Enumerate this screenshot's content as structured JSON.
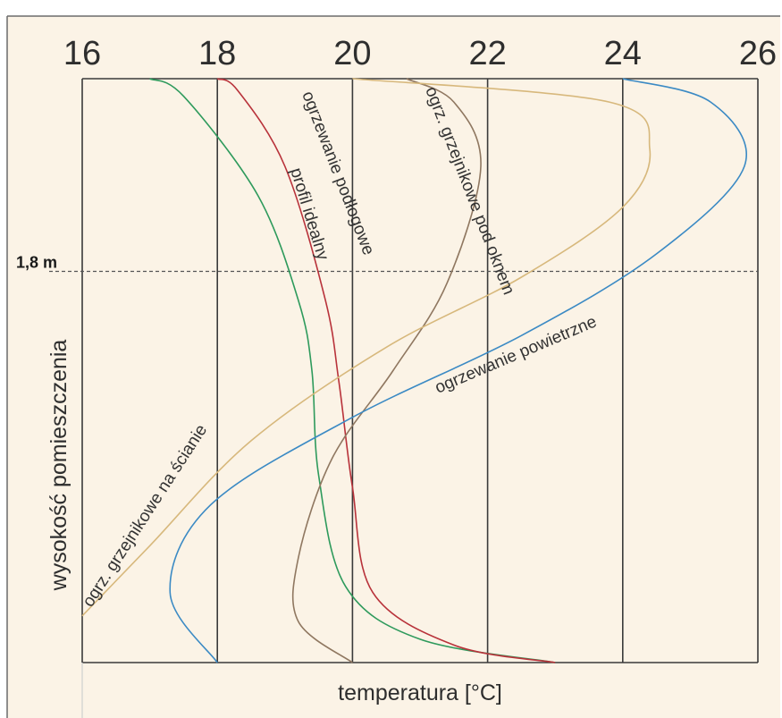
{
  "chart_data": {
    "type": "line",
    "title": "",
    "xlabel": "temperatura [°C]",
    "ylabel": "wysokość pomieszczenia",
    "xlim": [
      16,
      26
    ],
    "x_ticks": [
      16,
      18,
      20,
      22,
      24,
      26
    ],
    "x_tick_labels": [
      "16",
      "18",
      "20",
      "22",
      "24",
      "26"
    ],
    "y_range_fraction": [
      0,
      1
    ],
    "grid": "vertical lines at each x tick",
    "reference_line": {
      "label": "1,8 m",
      "height_fraction": 0.67,
      "style": "dashed"
    },
    "background": "#fbf3e6",
    "series": [
      {
        "name": "profil idealny",
        "color": "#2e9a5c",
        "points": [
          [
            23.0,
            0.0
          ],
          [
            21.0,
            0.04
          ],
          [
            19.9,
            0.13
          ],
          [
            19.5,
            0.32
          ],
          [
            19.4,
            0.5
          ],
          [
            19.2,
            0.62
          ],
          [
            18.6,
            0.8
          ],
          [
            17.5,
            0.97
          ],
          [
            17.0,
            1.0
          ]
        ]
      },
      {
        "name": "ogrzewanie podłogowe",
        "color": "#b8323a",
        "points": [
          [
            23.0,
            0.0
          ],
          [
            21.5,
            0.03
          ],
          [
            20.3,
            0.12
          ],
          [
            20.0,
            0.3
          ],
          [
            19.8,
            0.48
          ],
          [
            19.6,
            0.62
          ],
          [
            19.0,
            0.85
          ],
          [
            18.3,
            0.98
          ],
          [
            18.0,
            1.0
          ]
        ]
      },
      {
        "name": "ogrz. grzejnikowe pod oknem",
        "color": "#8f7760",
        "points": [
          [
            20.0,
            0.0
          ],
          [
            19.2,
            0.07
          ],
          [
            19.2,
            0.18
          ],
          [
            19.7,
            0.35
          ],
          [
            20.6,
            0.5
          ],
          [
            21.4,
            0.65
          ],
          [
            21.9,
            0.85
          ],
          [
            21.5,
            0.96
          ],
          [
            20.8,
            1.0
          ]
        ]
      },
      {
        "name": "ogrz. grzejnikowe na ścianie",
        "color": "#d7b87c",
        "points": [
          [
            16.0,
            0.08
          ],
          [
            17.0,
            0.2
          ],
          [
            18.5,
            0.38
          ],
          [
            20.5,
            0.54
          ],
          [
            22.5,
            0.66
          ],
          [
            24.0,
            0.78
          ],
          [
            24.4,
            0.88
          ],
          [
            23.8,
            0.96
          ],
          [
            20.0,
            1.0
          ]
        ]
      },
      {
        "name": "ogrzewanie powietrzne",
        "color": "#3b8ac4",
        "points": [
          [
            18.0,
            0.0
          ],
          [
            17.3,
            0.12
          ],
          [
            17.9,
            0.27
          ],
          [
            20.0,
            0.42
          ],
          [
            22.5,
            0.56
          ],
          [
            24.5,
            0.7
          ],
          [
            25.8,
            0.85
          ],
          [
            25.3,
            0.96
          ],
          [
            24.0,
            1.0
          ]
        ]
      }
    ]
  }
}
